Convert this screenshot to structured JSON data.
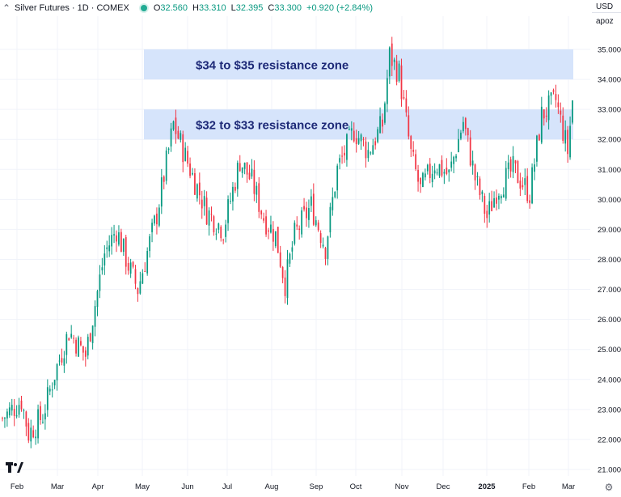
{
  "header": {
    "symbol": "Silver Futures · 1D · COMEX",
    "open_label": "O",
    "open": "32.560",
    "high_label": "H",
    "high": "33.310",
    "low_label": "L",
    "low": "32.395",
    "close_label": "C",
    "close": "33.300",
    "change": "+0.920 (+2.84%)"
  },
  "right_controls": {
    "currency": "USD",
    "scale_mode": "apoz"
  },
  "icons": {
    "collapse": "chevron-up-icon",
    "status": "market-status-dot-icon",
    "logo": "tradingview-logo-icon",
    "settings": "gear-icon"
  },
  "colors": {
    "up": "#089981",
    "down": "#f23645",
    "zone_fill": "#d6e4fb",
    "zone_text": "#1e2a78"
  },
  "chart_data": {
    "type": "candlestick",
    "title": "Silver Futures · 1D · COMEX",
    "y_axis": {
      "min": 21,
      "max": 35.5,
      "ticks": [
        "21.000",
        "22.000",
        "23.000",
        "24.000",
        "25.000",
        "26.000",
        "27.000",
        "28.000",
        "29.000",
        "30.000",
        "31.000",
        "32.000",
        "33.000",
        "34.000",
        "35.000"
      ]
    },
    "x_axis": {
      "labels": [
        "Feb",
        "Mar",
        "Apr",
        "May",
        "Jun",
        "Jul",
        "Aug",
        "Sep",
        "Oct",
        "Nov",
        "Dec",
        "2025",
        "Feb",
        "Mar"
      ]
    },
    "grid": true,
    "zones": [
      {
        "label": "$34 to $35 resistance zone",
        "from": 34,
        "to": 35
      },
      {
        "label": "$32 to $33 resistance zone",
        "from": 32,
        "to": 33
      }
    ],
    "trend_anchors": [
      [
        0,
        22.7
      ],
      [
        8,
        23.3
      ],
      [
        11,
        22.2
      ],
      [
        17,
        22.8
      ],
      [
        22,
        24.2
      ],
      [
        28,
        25.6
      ],
      [
        35,
        24.8
      ],
      [
        43,
        28.2
      ],
      [
        48,
        29.0
      ],
      [
        53,
        27.8
      ],
      [
        57,
        27.0
      ],
      [
        65,
        29.5
      ],
      [
        72,
        32.5
      ],
      [
        80,
        30.8
      ],
      [
        86,
        29.6
      ],
      [
        93,
        29.0
      ],
      [
        100,
        31.3
      ],
      [
        105,
        30.6
      ],
      [
        110,
        29.4
      ],
      [
        115,
        28.8
      ],
      [
        119,
        27.2
      ],
      [
        123,
        28.8
      ],
      [
        130,
        29.8
      ],
      [
        136,
        28.4
      ],
      [
        141,
        31.0
      ],
      [
        148,
        32.3
      ],
      [
        154,
        31.6
      ],
      [
        160,
        32.5
      ],
      [
        163,
        34.8
      ],
      [
        167,
        34.2
      ],
      [
        172,
        31.5
      ],
      [
        176,
        30.3
      ],
      [
        182,
        31.2
      ],
      [
        188,
        30.8
      ],
      [
        194,
        32.6
      ],
      [
        199,
        30.7
      ],
      [
        204,
        29.4
      ],
      [
        208,
        30.3
      ],
      [
        215,
        31.0
      ],
      [
        222,
        30.2
      ],
      [
        227,
        32.8
      ],
      [
        233,
        33.3
      ],
      [
        238,
        31.6
      ],
      [
        240,
        33.3
      ]
    ]
  }
}
